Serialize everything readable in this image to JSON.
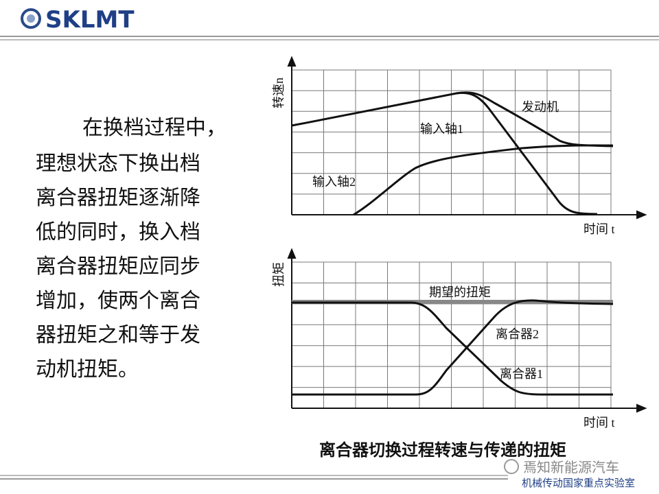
{
  "header": {
    "logo": "SKLMT"
  },
  "body": {
    "paragraph_lines": [
      "在换档过程中，",
      "理想状态下换出档",
      "离合器扭矩逐渐降",
      "低的同时，换入档",
      "离合器扭矩应同步",
      "增加，使两个离合",
      "器扭矩之和等于发",
      "动机扭矩。"
    ]
  },
  "figure": {
    "top_chart": {
      "y_label": "转速n",
      "x_label": "时间 t",
      "curve_labels": [
        "发动机",
        "输入轴1",
        "输入轴2"
      ]
    },
    "bottom_chart": {
      "y_label": "扭矩",
      "x_label": "时间 t",
      "curve_labels": [
        "期望的扭矩",
        "离合器2",
        "离合器1"
      ]
    },
    "caption": "离合器切换过程转速与传递的扭矩"
  },
  "footer": {
    "watermark": "焉知新能源汽车",
    "lab": "机械传动国家重点实验室"
  }
}
